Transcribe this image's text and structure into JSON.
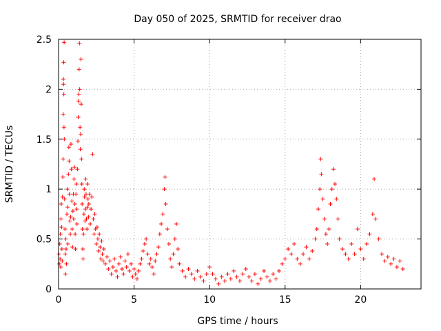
{
  "chart_data": {
    "type": "scatter",
    "title": "Day 050 of 2025, SRMTID for receiver drao",
    "xlabel": "GPS time / hours",
    "ylabel": "SRMTID / TECUs",
    "xlim": [
      0,
      24
    ],
    "ylim": [
      0,
      2.5
    ],
    "xticks": [
      0,
      5,
      10,
      15,
      20
    ],
    "xtick_labels": [
      "0",
      "5",
      "10",
      "15",
      "20"
    ],
    "yticks": [
      0,
      0.5,
      1,
      1.5,
      2,
      2.5
    ],
    "ytick_labels": [
      "0",
      "0.5",
      "1",
      "1.5",
      "2",
      "2.5"
    ],
    "grid": true,
    "marker": "+",
    "series": [
      {
        "name": "SRMTID",
        "color": "#ff0000",
        "points": [
          [
            0.02,
            0.35
          ],
          [
            0.05,
            0.25
          ],
          [
            0.08,
            0.45
          ],
          [
            0.1,
            0.3
          ],
          [
            0.12,
            0.55
          ],
          [
            0.14,
            0.22
          ],
          [
            0.16,
            0.7
          ],
          [
            0.18,
            0.85
          ],
          [
            0.2,
            0.62
          ],
          [
            0.22,
            0.4
          ],
          [
            0.24,
            0.28
          ],
          [
            0.26,
            0.92
          ],
          [
            0.28,
            1.12
          ],
          [
            0.3,
            1.3
          ],
          [
            0.31,
            1.75
          ],
          [
            0.32,
            2.1
          ],
          [
            0.33,
            2.05
          ],
          [
            0.34,
            2.27
          ],
          [
            0.35,
            1.95
          ],
          [
            0.36,
            1.62
          ],
          [
            0.37,
            2.47
          ],
          [
            0.38,
            1.5
          ],
          [
            0.4,
            0.9
          ],
          [
            0.42,
            0.6
          ],
          [
            0.44,
            0.35
          ],
          [
            0.46,
            0.15
          ],
          [
            0.48,
            0.5
          ],
          [
            0.5,
            0.4
          ],
          [
            0.52,
            0.25
          ],
          [
            0.55,
            0.75
          ],
          [
            0.58,
            1.0
          ],
          [
            0.6,
            0.82
          ],
          [
            0.62,
            0.45
          ],
          [
            0.65,
            1.15
          ],
          [
            0.68,
            1.42
          ],
          [
            0.7,
            1.28
          ],
          [
            0.72,
            0.95
          ],
          [
            0.75,
            0.68
          ],
          [
            0.78,
            0.55
          ],
          [
            0.8,
            0.72
          ],
          [
            0.82,
            1.45
          ],
          [
            0.85,
            1.2
          ],
          [
            0.88,
            0.88
          ],
          [
            0.9,
            0.6
          ],
          [
            0.92,
            0.42
          ],
          [
            0.95,
            0.78
          ],
          [
            0.98,
            0.95
          ],
          [
            1.0,
            0.7
          ],
          [
            1.02,
            1.1
          ],
          [
            1.05,
            1.22
          ],
          [
            1.08,
            0.85
          ],
          [
            1.1,
            0.55
          ],
          [
            1.12,
            0.4
          ],
          [
            1.15,
            0.95
          ],
          [
            1.18,
            1.05
          ],
          [
            1.2,
            0.8
          ],
          [
            1.22,
            0.65
          ],
          [
            1.25,
            1.2
          ],
          [
            1.28,
            1.48
          ],
          [
            1.3,
            1.72
          ],
          [
            1.32,
            1.88
          ],
          [
            1.34,
            1.95
          ],
          [
            1.36,
            2.2
          ],
          [
            1.38,
            2.46
          ],
          [
            1.4,
            2.0
          ],
          [
            1.42,
            1.62
          ],
          [
            1.44,
            1.4
          ],
          [
            1.46,
            1.55
          ],
          [
            1.48,
            2.3
          ],
          [
            1.5,
            1.85
          ],
          [
            1.52,
            1.3
          ],
          [
            1.54,
            1.05
          ],
          [
            1.56,
            0.85
          ],
          [
            1.58,
            0.6
          ],
          [
            1.6,
            0.4
          ],
          [
            1.62,
            0.3
          ],
          [
            1.65,
            0.55
          ],
          [
            1.68,
            0.75
          ],
          [
            1.7,
            1.0
          ],
          [
            1.72,
            0.92
          ],
          [
            1.75,
            0.68
          ],
          [
            1.78,
            0.8
          ],
          [
            1.8,
            1.1
          ],
          [
            1.82,
            0.95
          ],
          [
            1.85,
            0.7
          ],
          [
            1.88,
            0.6
          ],
          [
            1.9,
            0.82
          ],
          [
            1.92,
            1.05
          ],
          [
            1.95,
            0.9
          ],
          [
            1.98,
            0.72
          ],
          [
            2.0,
            0.85
          ],
          [
            2.05,
            0.95
          ],
          [
            2.1,
            0.65
          ],
          [
            2.15,
            0.8
          ],
          [
            2.2,
            0.92
          ],
          [
            2.25,
            1.35
          ],
          [
            2.3,
            0.7
          ],
          [
            2.35,
            0.55
          ],
          [
            2.4,
            0.75
          ],
          [
            2.45,
            0.6
          ],
          [
            2.5,
            0.45
          ],
          [
            2.55,
            0.62
          ],
          [
            2.6,
            0.5
          ],
          [
            2.65,
            0.38
          ],
          [
            2.7,
            0.55
          ],
          [
            2.75,
            0.42
          ],
          [
            2.8,
            0.3
          ],
          [
            2.85,
            0.48
          ],
          [
            2.9,
            0.35
          ],
          [
            2.95,
            0.28
          ],
          [
            3.0,
            0.4
          ],
          [
            3.1,
            0.25
          ],
          [
            3.2,
            0.32
          ],
          [
            3.3,
            0.2
          ],
          [
            3.4,
            0.28
          ],
          [
            3.5,
            0.15
          ],
          [
            3.6,
            0.22
          ],
          [
            3.7,
            0.3
          ],
          [
            3.8,
            0.18
          ],
          [
            3.9,
            0.12
          ],
          [
            4.0,
            0.25
          ],
          [
            4.1,
            0.32
          ],
          [
            4.2,
            0.2
          ],
          [
            4.3,
            0.15
          ],
          [
            4.4,
            0.28
          ],
          [
            4.5,
            0.22
          ],
          [
            4.6,
            0.35
          ],
          [
            4.7,
            0.18
          ],
          [
            4.8,
            0.25
          ],
          [
            4.9,
            0.12
          ],
          [
            5.0,
            0.2
          ],
          [
            5.1,
            0.15
          ],
          [
            5.2,
            0.1
          ],
          [
            5.3,
            0.18
          ],
          [
            5.4,
            0.25
          ],
          [
            5.5,
            0.3
          ],
          [
            5.6,
            0.38
          ],
          [
            5.7,
            0.45
          ],
          [
            5.8,
            0.5
          ],
          [
            5.9,
            0.35
          ],
          [
            6.0,
            0.25
          ],
          [
            6.1,
            0.3
          ],
          [
            6.2,
            0.22
          ],
          [
            6.3,
            0.15
          ],
          [
            6.4,
            0.28
          ],
          [
            6.5,
            0.35
          ],
          [
            6.6,
            0.42
          ],
          [
            6.7,
            0.55
          ],
          [
            6.8,
            0.65
          ],
          [
            6.9,
            0.75
          ],
          [
            7.0,
            1.0
          ],
          [
            7.05,
            1.12
          ],
          [
            7.1,
            0.85
          ],
          [
            7.2,
            0.6
          ],
          [
            7.3,
            0.45
          ],
          [
            7.4,
            0.3
          ],
          [
            7.5,
            0.22
          ],
          [
            7.6,
            0.35
          ],
          [
            7.7,
            0.5
          ],
          [
            7.8,
            0.65
          ],
          [
            7.9,
            0.4
          ],
          [
            8.0,
            0.25
          ],
          [
            8.2,
            0.18
          ],
          [
            8.4,
            0.12
          ],
          [
            8.6,
            0.2
          ],
          [
            8.8,
            0.15
          ],
          [
            9.0,
            0.1
          ],
          [
            9.2,
            0.18
          ],
          [
            9.4,
            0.12
          ],
          [
            9.6,
            0.08
          ],
          [
            9.8,
            0.15
          ],
          [
            10.0,
            0.22
          ],
          [
            10.2,
            0.15
          ],
          [
            10.4,
            0.1
          ],
          [
            10.6,
            0.05
          ],
          [
            10.8,
            0.12
          ],
          [
            11.0,
            0.08
          ],
          [
            11.2,
            0.15
          ],
          [
            11.4,
            0.1
          ],
          [
            11.6,
            0.18
          ],
          [
            11.8,
            0.12
          ],
          [
            12.0,
            0.08
          ],
          [
            12.2,
            0.15
          ],
          [
            12.4,
            0.2
          ],
          [
            12.6,
            0.12
          ],
          [
            12.8,
            0.08
          ],
          [
            13.0,
            0.15
          ],
          [
            13.2,
            0.05
          ],
          [
            13.4,
            0.1
          ],
          [
            13.6,
            0.18
          ],
          [
            13.8,
            0.12
          ],
          [
            14.0,
            0.08
          ],
          [
            14.2,
            0.15
          ],
          [
            14.4,
            0.1
          ],
          [
            14.6,
            0.18
          ],
          [
            14.8,
            0.25
          ],
          [
            15.0,
            0.3
          ],
          [
            15.2,
            0.4
          ],
          [
            15.4,
            0.35
          ],
          [
            15.6,
            0.45
          ],
          [
            15.8,
            0.3
          ],
          [
            16.0,
            0.25
          ],
          [
            16.2,
            0.35
          ],
          [
            16.4,
            0.42
          ],
          [
            16.6,
            0.3
          ],
          [
            16.8,
            0.38
          ],
          [
            17.0,
            0.5
          ],
          [
            17.1,
            0.6
          ],
          [
            17.2,
            0.8
          ],
          [
            17.3,
            1.0
          ],
          [
            17.35,
            1.3
          ],
          [
            17.4,
            1.15
          ],
          [
            17.5,
            0.9
          ],
          [
            17.6,
            0.7
          ],
          [
            17.7,
            0.55
          ],
          [
            17.8,
            0.45
          ],
          [
            17.9,
            0.6
          ],
          [
            18.0,
            0.85
          ],
          [
            18.1,
            1.0
          ],
          [
            18.2,
            1.2
          ],
          [
            18.3,
            1.05
          ],
          [
            18.4,
            0.9
          ],
          [
            18.5,
            0.7
          ],
          [
            18.6,
            0.5
          ],
          [
            18.8,
            0.4
          ],
          [
            19.0,
            0.35
          ],
          [
            19.2,
            0.3
          ],
          [
            19.4,
            0.45
          ],
          [
            19.6,
            0.35
          ],
          [
            19.8,
            0.6
          ],
          [
            20.0,
            0.4
          ],
          [
            20.2,
            0.3
          ],
          [
            20.4,
            0.45
          ],
          [
            20.6,
            0.55
          ],
          [
            20.8,
            0.75
          ],
          [
            20.9,
            1.1
          ],
          [
            21.0,
            0.7
          ],
          [
            21.2,
            0.5
          ],
          [
            21.4,
            0.35
          ],
          [
            21.6,
            0.28
          ],
          [
            21.8,
            0.32
          ],
          [
            22.0,
            0.25
          ],
          [
            22.2,
            0.3
          ],
          [
            22.4,
            0.22
          ],
          [
            22.6,
            0.28
          ],
          [
            22.8,
            0.2
          ]
        ]
      }
    ]
  }
}
